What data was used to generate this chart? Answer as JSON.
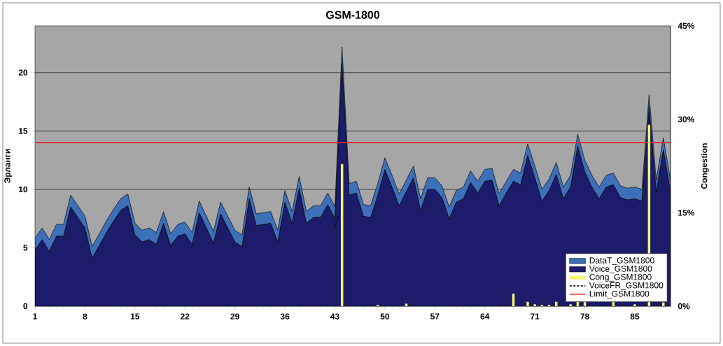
{
  "chart_data": {
    "type": "area",
    "title": "GSM-1800",
    "ylabel": "Эрланги",
    "y2label": "Congestion",
    "x": [
      1,
      2,
      3,
      4,
      5,
      6,
      7,
      8,
      9,
      10,
      11,
      12,
      13,
      14,
      15,
      16,
      17,
      18,
      19,
      20,
      21,
      22,
      23,
      24,
      25,
      26,
      27,
      28,
      29,
      30,
      31,
      32,
      33,
      34,
      35,
      36,
      37,
      38,
      39,
      40,
      41,
      42,
      43,
      44,
      45,
      46,
      47,
      48,
      49,
      50,
      51,
      52,
      53,
      54,
      55,
      56,
      57,
      58,
      59,
      60,
      61,
      62,
      63,
      64,
      65,
      66,
      67,
      68,
      69,
      70,
      71,
      72,
      73,
      74,
      75,
      76,
      77,
      78,
      79,
      80,
      81,
      82,
      83,
      84,
      85,
      86,
      87,
      88,
      89,
      90
    ],
    "xlim": [
      1,
      90
    ],
    "xticks": [
      1,
      8,
      15,
      22,
      29,
      36,
      43,
      50,
      57,
      64,
      71,
      78,
      85
    ],
    "ylim": [
      0,
      24
    ],
    "yticks": [
      0,
      5,
      10,
      15,
      20
    ],
    "y2lim": [
      0,
      45
    ],
    "y2ticks": [
      {
        "value": 0,
        "label": "0%"
      },
      {
        "value": 15,
        "label": "15%"
      },
      {
        "value": 30,
        "label": "30%"
      },
      {
        "value": 45,
        "label": "45%"
      }
    ],
    "stacked": true,
    "grid": "y",
    "legend": "bottom right",
    "series": [
      {
        "name": "Voice_GSM1800",
        "color": "#1c1c6b",
        "values": [
          4.8,
          5.7,
          4.7,
          6.0,
          6.0,
          8.5,
          7.6,
          6.7,
          4.1,
          5.2,
          6.3,
          7.3,
          8.2,
          8.6,
          6.1,
          5.5,
          5.7,
          5.3,
          7.1,
          5.2,
          6.0,
          6.2,
          5.3,
          8.0,
          6.7,
          5.4,
          7.9,
          6.7,
          5.5,
          5.1,
          9.2,
          6.9,
          7.0,
          7.1,
          5.5,
          8.9,
          7.1,
          10.1,
          7.1,
          7.6,
          7.6,
          8.7,
          7.5,
          20.8,
          9.5,
          9.7,
          7.7,
          7.6,
          9.5,
          11.7,
          10.2,
          8.6,
          9.8,
          11.0,
          8.2,
          10.0,
          10.0,
          9.3,
          7.5,
          8.9,
          9.2,
          10.6,
          9.7,
          10.7,
          10.8,
          8.6,
          9.7,
          10.7,
          10.4,
          12.9,
          11.0,
          9.0,
          9.9,
          11.3,
          9.2,
          10.2,
          13.7,
          11.5,
          10.2,
          9.2,
          10.2,
          10.4,
          9.3,
          9.1,
          9.2,
          9.0,
          17.1,
          9.8,
          13.4,
          9.8
        ]
      },
      {
        "name": "DataT_GSM1800",
        "color": "#3d70b8",
        "values": [
          1.0,
          1.0,
          1.0,
          1.0,
          1.0,
          1.0,
          1.0,
          1.0,
          1.0,
          1.0,
          1.0,
          1.0,
          1.0,
          1.0,
          1.0,
          1.0,
          1.0,
          1.0,
          1.0,
          1.0,
          1.0,
          1.0,
          1.0,
          1.0,
          1.0,
          1.0,
          1.0,
          1.0,
          1.0,
          1.0,
          1.0,
          1.0,
          1.0,
          1.0,
          1.0,
          1.0,
          1.0,
          1.0,
          1.0,
          1.0,
          1.0,
          1.0,
          1.0,
          1.4,
          1.0,
          1.0,
          1.0,
          1.0,
          1.0,
          1.0,
          1.0,
          1.0,
          1.0,
          1.0,
          1.0,
          1.0,
          1.0,
          1.0,
          1.0,
          1.0,
          1.0,
          1.0,
          1.0,
          1.0,
          1.0,
          1.0,
          1.0,
          1.0,
          1.0,
          1.0,
          1.0,
          1.0,
          1.0,
          1.0,
          1.0,
          1.0,
          1.0,
          1.0,
          1.0,
          1.0,
          1.0,
          1.0,
          1.0,
          1.0,
          1.0,
          1.0,
          1.0,
          1.0,
          1.0,
          1.0
        ]
      },
      {
        "name": "Cong_GSM1800",
        "type": "bar",
        "axis": "y2",
        "color": "#f2f27a",
        "values": [
          0,
          0,
          0,
          0,
          0,
          0,
          0,
          0,
          0,
          0,
          0,
          0,
          0,
          0,
          0,
          0,
          0,
          0,
          0,
          0,
          0,
          0,
          0,
          0,
          0,
          0,
          0,
          0,
          0,
          0,
          0,
          0,
          0,
          0,
          0,
          0,
          0,
          0,
          0,
          0,
          0,
          0,
          0,
          22.8,
          0,
          0,
          0,
          0,
          0.2,
          0,
          0,
          0,
          0.4,
          0,
          0,
          0,
          0,
          0,
          0,
          0,
          0,
          0,
          0,
          0,
          0,
          0,
          0,
          2.0,
          0,
          0.7,
          0.3,
          0.2,
          0.2,
          0.7,
          0,
          0.3,
          0.7,
          0.7,
          0,
          0,
          0,
          0.7,
          0,
          0,
          0.3,
          0,
          29.1,
          0,
          0.6,
          0
        ]
      },
      {
        "name": "VoiceFR_GSM1800",
        "type": "line",
        "line_style": "dashed",
        "color": "#000000",
        "x": [
          42.9,
          43.6
        ],
        "values": [
          6.6,
          7.9
        ]
      },
      {
        "name": "Limit_GSM1800",
        "type": "line",
        "line_style": "solid",
        "color": "#e3262b",
        "x": [
          1,
          90
        ],
        "values": [
          14,
          14
        ]
      }
    ]
  }
}
